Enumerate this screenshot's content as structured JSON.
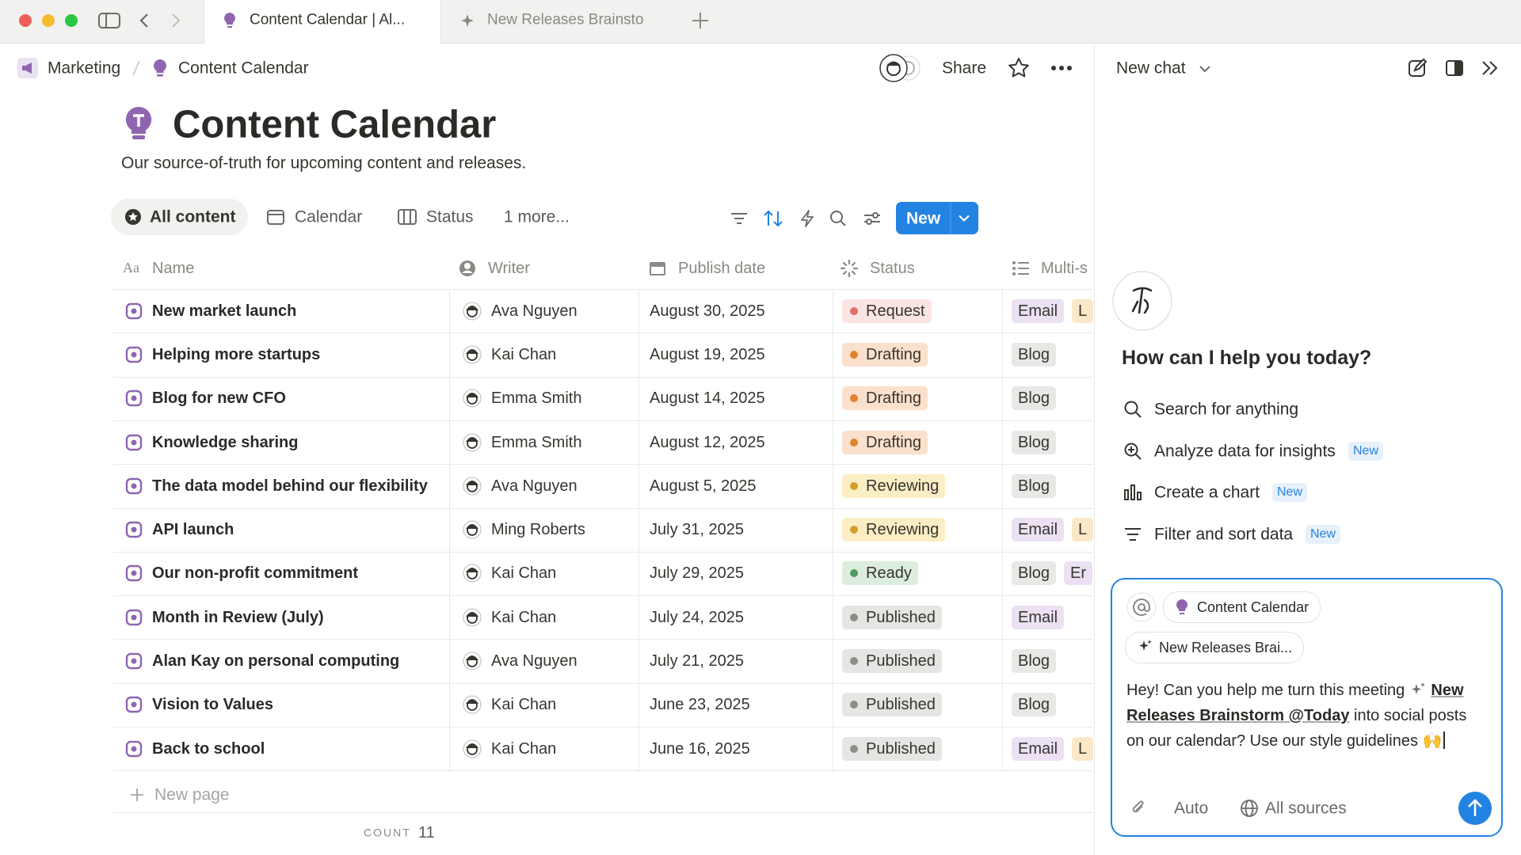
{
  "tabs": [
    "Content Calendar | Al...",
    "New Releases Brainsto"
  ],
  "breadcrumb": [
    "Marketing",
    "Content Calendar"
  ],
  "share": "Share",
  "page": {
    "title": "Content Calendar",
    "description": "Our source-of-truth for upcoming content and releases."
  },
  "views": [
    "All content",
    "Calendar",
    "Status",
    "1 more..."
  ],
  "new_button": "New",
  "columns": [
    "Name",
    "Writer",
    "Publish date",
    "Status",
    "Multi-s"
  ],
  "rows": [
    {
      "name": "New market launch",
      "writer": "Ava Nguyen",
      "date": "August 30, 2025",
      "status": {
        "label": "Request",
        "color": "#fbe4e4",
        "dot": "#e16f64"
      },
      "tags": [
        {
          "label": "Email",
          "color": "#ebe1f3"
        },
        {
          "label": "L",
          "color": "#fbe8c8"
        }
      ]
    },
    {
      "name": "Helping more startups",
      "writer": "Kai Chan",
      "date": "August 19, 2025",
      "status": {
        "label": "Drafting",
        "color": "#fbe0cc",
        "dot": "#e0822c"
      },
      "tags": [
        {
          "label": "Blog",
          "color": "#e9e8e6"
        }
      ]
    },
    {
      "name": "Blog for new CFO",
      "writer": "Emma Smith",
      "date": "August 14, 2025",
      "status": {
        "label": "Drafting",
        "color": "#fbe0cc",
        "dot": "#e0822c"
      },
      "tags": [
        {
          "label": "Blog",
          "color": "#e9e8e6"
        }
      ]
    },
    {
      "name": "Knowledge sharing",
      "writer": "Emma Smith",
      "date": "August 12, 2025",
      "status": {
        "label": "Drafting",
        "color": "#fbe0cc",
        "dot": "#e0822c"
      },
      "tags": [
        {
          "label": "Blog",
          "color": "#e9e8e6"
        }
      ]
    },
    {
      "name": "The data model behind our flexibility",
      "writer": "Ava Nguyen",
      "date": "August 5, 2025",
      "status": {
        "label": "Reviewing",
        "color": "#fbedc4",
        "dot": "#d59f2a"
      },
      "tags": [
        {
          "label": "Blog",
          "color": "#e9e8e6"
        }
      ]
    },
    {
      "name": "API launch",
      "writer": "Ming Roberts",
      "date": "July 31, 2025",
      "status": {
        "label": "Reviewing",
        "color": "#fbedc4",
        "dot": "#d59f2a"
      },
      "tags": [
        {
          "label": "Email",
          "color": "#ebe1f3"
        },
        {
          "label": "L",
          "color": "#fbe8c8"
        }
      ]
    },
    {
      "name": "Our non-profit commitment",
      "writer": "Kai Chan",
      "date": "July 29, 2025",
      "status": {
        "label": "Ready",
        "color": "#dcecdd",
        "dot": "#4e9a65"
      },
      "tags": [
        {
          "label": "Blog",
          "color": "#e9e8e6"
        },
        {
          "label": "Er",
          "color": "#ebe1f3"
        }
      ]
    },
    {
      "name": "Month in Review (July)",
      "writer": "Kai Chan",
      "date": "July 24, 2025",
      "status": {
        "label": "Published",
        "color": "#e6e5e3",
        "dot": "#8e8c88"
      },
      "tags": [
        {
          "label": "Email",
          "color": "#ebe1f3"
        }
      ]
    },
    {
      "name": "Alan Kay on personal computing",
      "writer": "Ava Nguyen",
      "date": "July 21, 2025",
      "status": {
        "label": "Published",
        "color": "#e6e5e3",
        "dot": "#8e8c88"
      },
      "tags": [
        {
          "label": "Blog",
          "color": "#e9e8e6"
        }
      ]
    },
    {
      "name": "Vision to Values",
      "writer": "Kai Chan",
      "date": "June 23, 2025",
      "status": {
        "label": "Published",
        "color": "#e6e5e3",
        "dot": "#8e8c88"
      },
      "tags": [
        {
          "label": "Blog",
          "color": "#e9e8e6"
        }
      ]
    },
    {
      "name": "Back to school",
      "writer": "Kai Chan",
      "date": "June 16, 2025",
      "status": {
        "label": "Published",
        "color": "#e6e5e3",
        "dot": "#8e8c88"
      },
      "tags": [
        {
          "label": "Email",
          "color": "#ebe1f3"
        },
        {
          "label": "L",
          "color": "#fbe8c8"
        }
      ]
    }
  ],
  "new_page": "New page",
  "count": {
    "label": "COUNT",
    "value": 11
  },
  "chat": {
    "title": "New chat",
    "greeting": "How can I help you today?",
    "suggestions": [
      {
        "label": "Search for anything"
      },
      {
        "label": "Analyze data for insights",
        "badge": "New"
      },
      {
        "label": "Create a chart",
        "badge": "New"
      },
      {
        "label": "Filter and sort data",
        "badge": "New"
      }
    ],
    "context": [
      "Content Calendar",
      "New Releases Brai..."
    ],
    "message": {
      "before": "Hey! Can you help me turn this meeting",
      "mention": "New Releases Brainstorm @Today",
      "after": "into social posts on our calendar? Use our style guidelines 🙌"
    },
    "mode": "Auto",
    "sources": "All sources"
  }
}
